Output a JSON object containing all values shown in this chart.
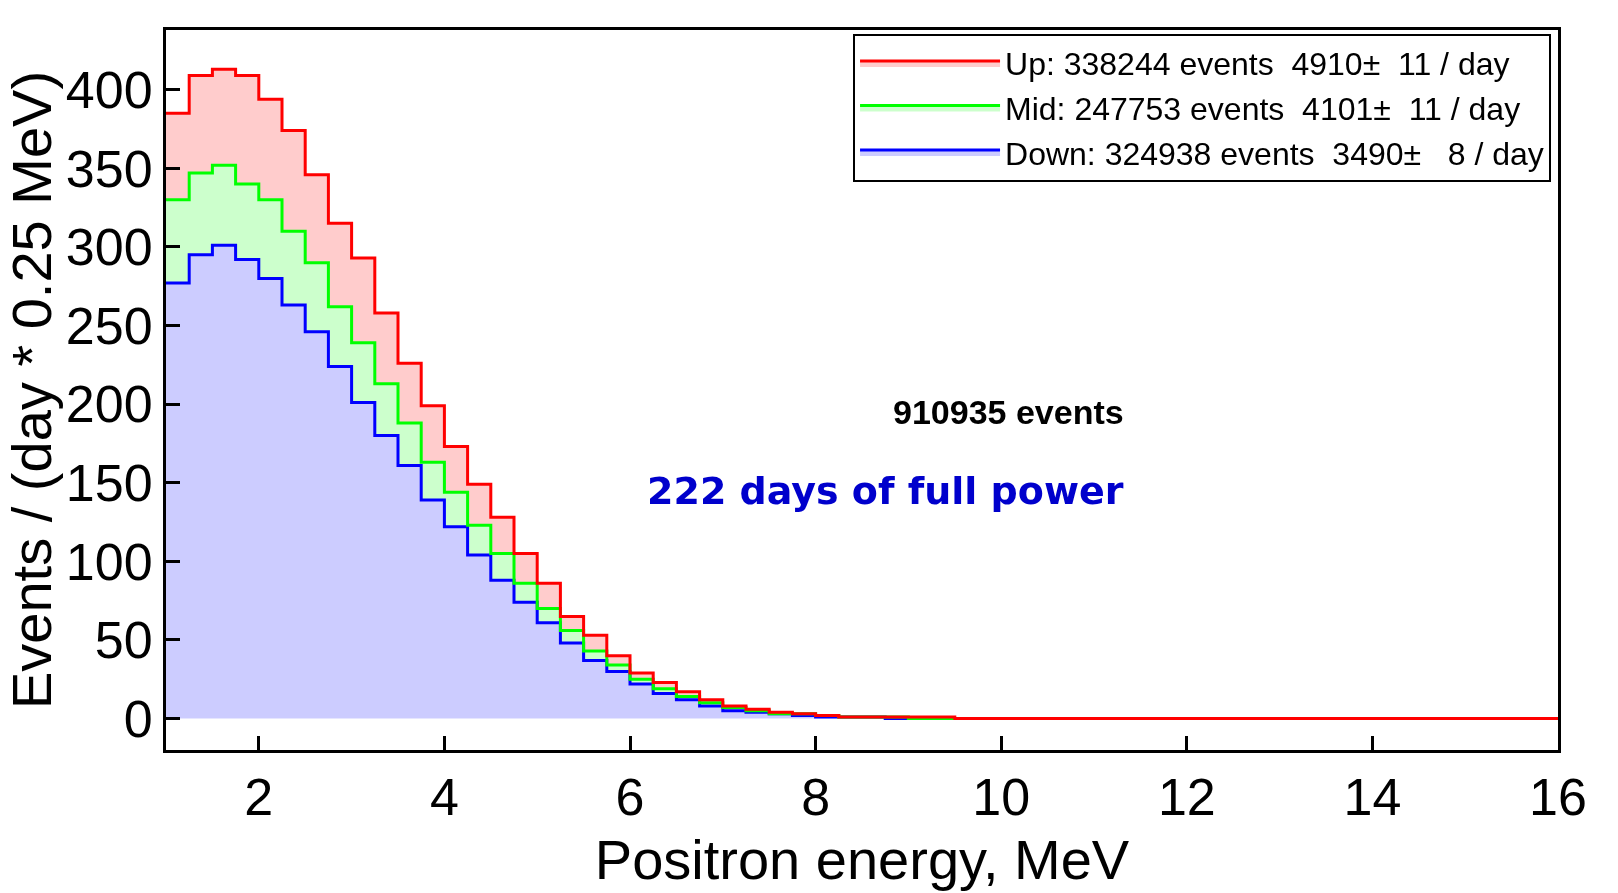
{
  "chart_data": {
    "type": "histogram",
    "xlabel": "Positron energy, MeV",
    "ylabel": "Events / (day * 0.25 MeV)",
    "bins": [
      1.0,
      1.25,
      1.5,
      1.75,
      2.0,
      2.25,
      2.5,
      2.75,
      3.0,
      3.25,
      3.5,
      3.75,
      4.0,
      4.25,
      4.5,
      4.75,
      5.0,
      5.25,
      5.5,
      5.75,
      6.0,
      6.25,
      6.5,
      6.75,
      7.0,
      7.25,
      7.5,
      7.75,
      8.0,
      8.25,
      8.5,
      8.75,
      9.0,
      9.25,
      9.5,
      9.75,
      10.0,
      10.25,
      10.5,
      10.75,
      11.0,
      11.25,
      11.5,
      11.75,
      12.0,
      12.25,
      12.5,
      12.75,
      13.0,
      13.25,
      13.5,
      13.75,
      14.0,
      14.25,
      14.5,
      14.75,
      15.0,
      15.25,
      15.5,
      15.75,
      16.0
    ],
    "series": [
      {
        "name": "Up: 338244 events  4910±  11 / day",
        "color": "#ff0000",
        "values": [
          385,
          409,
          413,
          409,
          394,
          374,
          346,
          315,
          293,
          258,
          226,
          199,
          173,
          149,
          128,
          105,
          86,
          65,
          53,
          40,
          29,
          23,
          17,
          12,
          8,
          6,
          4,
          3,
          2,
          1,
          1,
          1,
          1,
          1,
          0,
          0,
          0,
          0,
          0,
          0,
          0,
          0,
          0,
          0,
          0,
          0,
          0,
          0,
          0,
          0,
          0,
          0,
          0,
          0,
          0,
          0,
          0,
          0,
          0,
          0
        ]
      },
      {
        "name": "Mid: 247753 events  4101±  11 / day",
        "color": "#00ff00",
        "values": [
          330,
          347,
          352,
          340,
          330,
          310,
          290,
          262,
          239,
          213,
          188,
          163,
          144,
          123,
          105,
          86,
          70,
          56,
          43,
          34,
          25,
          19,
          14,
          10,
          7,
          5,
          3,
          3,
          2,
          1,
          1,
          1,
          0,
          0,
          0,
          0,
          0,
          0,
          0,
          0,
          0,
          0,
          0,
          0,
          0,
          0,
          0,
          0,
          0,
          0,
          0,
          0,
          0,
          0,
          0,
          0,
          0,
          0,
          0,
          0
        ]
      },
      {
        "name": "Down: 324938 events  3490±   8 / day",
        "color": "#0000ff",
        "values": [
          277,
          295,
          301,
          292,
          280,
          263,
          246,
          224,
          201,
          180,
          161,
          139,
          122,
          104,
          88,
          74,
          61,
          48,
          37,
          30,
          22,
          16,
          12,
          8,
          5,
          4,
          3,
          2,
          1,
          1,
          1,
          0,
          0,
          0,
          0,
          0,
          0,
          0,
          0,
          0,
          0,
          0,
          0,
          0,
          0,
          0,
          0,
          0,
          0,
          0,
          0,
          0,
          0,
          0,
          0,
          0,
          0,
          0,
          0,
          0
        ]
      }
    ],
    "xlim": [
      1,
      16
    ],
    "xticks": [
      2,
      4,
      6,
      8,
      10,
      12,
      14,
      16
    ],
    "ylim": [
      -20,
      438
    ],
    "yticks": [
      0,
      50,
      100,
      150,
      200,
      250,
      300,
      350,
      400
    ],
    "legend": "top right",
    "marker": "none",
    "line_style": "solid",
    "annotations": [
      "910935 events",
      "222 days of full power"
    ]
  }
}
